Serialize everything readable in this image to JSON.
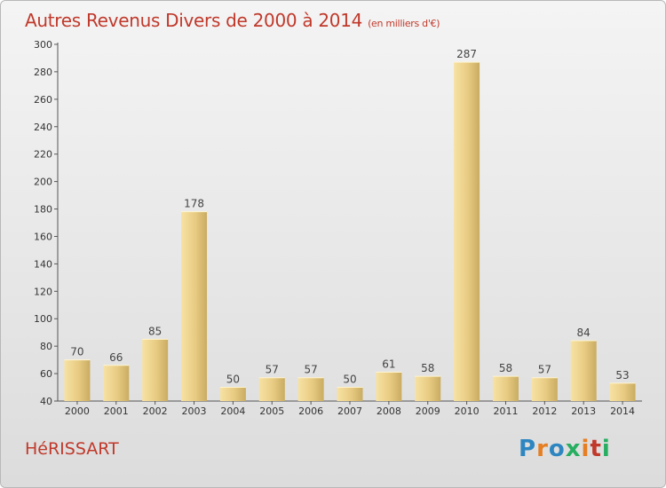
{
  "title": "Autres Revenus Divers de 2000 à 2014",
  "unit_note": "(en milliers d'€)",
  "commune": "HéRISSART",
  "logo": {
    "letters": [
      "P",
      "r",
      "o",
      "x",
      "i",
      "t",
      "i"
    ],
    "colors": [
      "#2e86c1",
      "#e67e22",
      "#2e86c1",
      "#27ae60",
      "#e67e22",
      "#c0392b",
      "#27ae60"
    ]
  },
  "colors": {
    "accent": "#c0392b",
    "bar_light": "#f5dc96",
    "bar_dark": "#c9ac62"
  },
  "chart_data": {
    "type": "bar",
    "title": "Autres Revenus Divers de 2000 à 2014",
    "ylabel": "",
    "xlabel": "",
    "categories": [
      "2000",
      "2001",
      "2002",
      "2003",
      "2004",
      "2005",
      "2006",
      "2007",
      "2008",
      "2009",
      "2010",
      "2011",
      "2012",
      "2013",
      "2014"
    ],
    "values": [
      70,
      66,
      85,
      178,
      50,
      57,
      57,
      50,
      61,
      58,
      287,
      58,
      57,
      84,
      53
    ],
    "ylim": [
      40,
      300
    ],
    "yticks": [
      40,
      60,
      80,
      100,
      120,
      140,
      160,
      180,
      200,
      220,
      240,
      260,
      280,
      300
    ],
    "grid": false,
    "legend": "none"
  }
}
